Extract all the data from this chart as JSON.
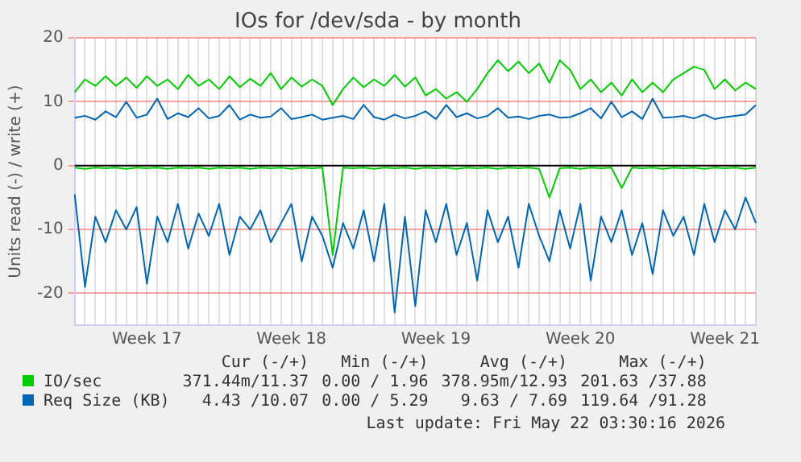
{
  "chart_data": {
    "type": "line",
    "title": "IOs for /dev/sda - by month",
    "ylabel": "Units read (-) / write (+)",
    "categories": [
      null,
      null,
      null,
      null,
      null,
      null,
      null,
      "Week 17",
      null,
      null,
      null,
      null,
      null,
      null,
      null,
      null,
      null,
      null,
      null,
      null,
      null,
      "Week 18",
      null,
      null,
      null,
      null,
      null,
      null,
      null,
      null,
      null,
      null,
      null,
      null,
      null,
      "Week 19",
      null,
      null,
      null,
      null,
      null,
      null,
      null,
      null,
      null,
      null,
      null,
      null,
      null,
      "Week 20",
      null,
      null,
      null,
      null,
      null,
      null,
      null,
      null,
      null,
      null,
      null,
      null,
      null,
      "Week 21",
      null,
      null,
      null
    ],
    "ylim": [
      -25,
      20
    ],
    "yticks": [
      -20,
      -10,
      0,
      10,
      20
    ],
    "grid": true,
    "legend": "bottom left",
    "marker": "none",
    "line_style": "solid",
    "ref_lines": [
      {
        "axis": "y",
        "value": 0,
        "color": "#000000"
      }
    ],
    "series": [
      {
        "name": "IO/sec",
        "color": "#00cc00",
        "values": [
          11.5,
          13.5,
          12.5,
          14,
          12.5,
          13.8,
          12.2,
          14,
          12.5,
          13.5,
          12,
          14.2,
          12.5,
          13.5,
          12,
          14,
          12.3,
          13.6,
          12.5,
          14.5,
          12,
          13.8,
          12.4,
          13.5,
          12.5,
          9.5,
          12,
          13.8,
          12.3,
          13.5,
          12.5,
          14.2,
          12.4,
          13.8,
          11,
          12,
          10.5,
          11.5,
          10,
          12,
          14.5,
          16.5,
          14.8,
          16.3,
          14.5,
          16,
          13,
          16.5,
          15,
          12,
          13.5,
          11.5,
          13,
          11,
          13.5,
          11.5,
          13,
          11.5,
          13.5,
          14.5,
          15.5,
          15,
          12,
          13.5,
          11.8,
          13,
          12
        ]
      },
      {
        "color": "#00cc00",
        "values": [
          -0.3,
          -0.5,
          -0.3,
          -0.4,
          -0.3,
          -0.5,
          -0.3,
          -0.4,
          -0.3,
          -0.5,
          -0.3,
          -0.4,
          -0.3,
          -0.5,
          -0.3,
          -0.4,
          -0.3,
          -0.5,
          -0.3,
          -0.4,
          -0.3,
          -0.5,
          -0.3,
          -0.4,
          -0.3,
          -14,
          -0.3,
          -0.4,
          -0.3,
          -0.5,
          -0.3,
          -0.4,
          -0.3,
          -0.5,
          -0.3,
          -0.4,
          -0.3,
          -0.5,
          -0.3,
          -0.4,
          -0.3,
          -0.5,
          -0.3,
          -0.4,
          -0.3,
          -0.5,
          -5,
          -0.4,
          -0.3,
          -0.5,
          -0.3,
          -0.4,
          -0.3,
          -3.5,
          -0.3,
          -0.4,
          -0.3,
          -0.5,
          -0.3,
          -0.4,
          -0.3,
          -0.5,
          -0.3,
          -0.4,
          -0.3,
          -0.5,
          -0.3
        ]
      },
      {
        "name": "Req Size (KB)",
        "color": "#0066b3",
        "values": [
          7.5,
          7.8,
          7.2,
          8.5,
          7.6,
          10,
          7.5,
          8,
          10.5,
          7.3,
          8.2,
          7.6,
          9,
          7.4,
          7.8,
          9.5,
          7.2,
          8,
          7.5,
          7.7,
          9,
          7.3,
          7.6,
          8,
          7.2,
          7.5,
          7.8,
          7.3,
          9.5,
          7.6,
          7.2,
          8,
          7.4,
          7.8,
          8.5,
          7.3,
          9.5,
          7.6,
          8.2,
          7.4,
          7.8,
          9,
          7.5,
          7.7,
          7.3,
          7.8,
          8,
          7.5,
          7.6,
          8.2,
          9,
          7.4,
          10,
          7.6,
          8.5,
          7.3,
          10.5,
          7.5,
          7.6,
          7.8,
          7.4,
          8,
          7.3,
          7.6,
          7.8,
          8,
          9.5
        ]
      },
      {
        "color": "#0066b3",
        "values": [
          -4.5,
          -19,
          -8,
          -12,
          -7,
          -10,
          -6.5,
          -18.5,
          -8,
          -12,
          -6,
          -13,
          -7.5,
          -11,
          -6,
          -14,
          -8,
          -10,
          -7,
          -12,
          -9,
          -6,
          -15,
          -8,
          -11,
          -16,
          -9,
          -13,
          -7,
          -15,
          -6,
          -23,
          -8,
          -22,
          -7,
          -12,
          -6,
          -14,
          -9,
          -18,
          -7,
          -12,
          -8,
          -16,
          -6,
          -11,
          -15,
          -7,
          -13,
          -6,
          -18,
          -8,
          -12,
          -7,
          -14,
          -9,
          -17,
          -7,
          -11,
          -8,
          -14,
          -6,
          -12,
          -7,
          -10,
          -5,
          -9
        ]
      }
    ],
    "annotations": [
      "Cur (-/+)",
      "Min (-/+)",
      "Avg (-/+)",
      "Max (-/+)",
      "371.44m/11.37",
      "0.00 / 1.96",
      "378.95m/12.93",
      "201.63 /37.88",
      "4.43 /10.07",
      "0.00 / 5.29",
      "9.63 / 7.69",
      "119.64 /91.28",
      "Last update: Fri May 22 03:30:16 2026"
    ]
  }
}
